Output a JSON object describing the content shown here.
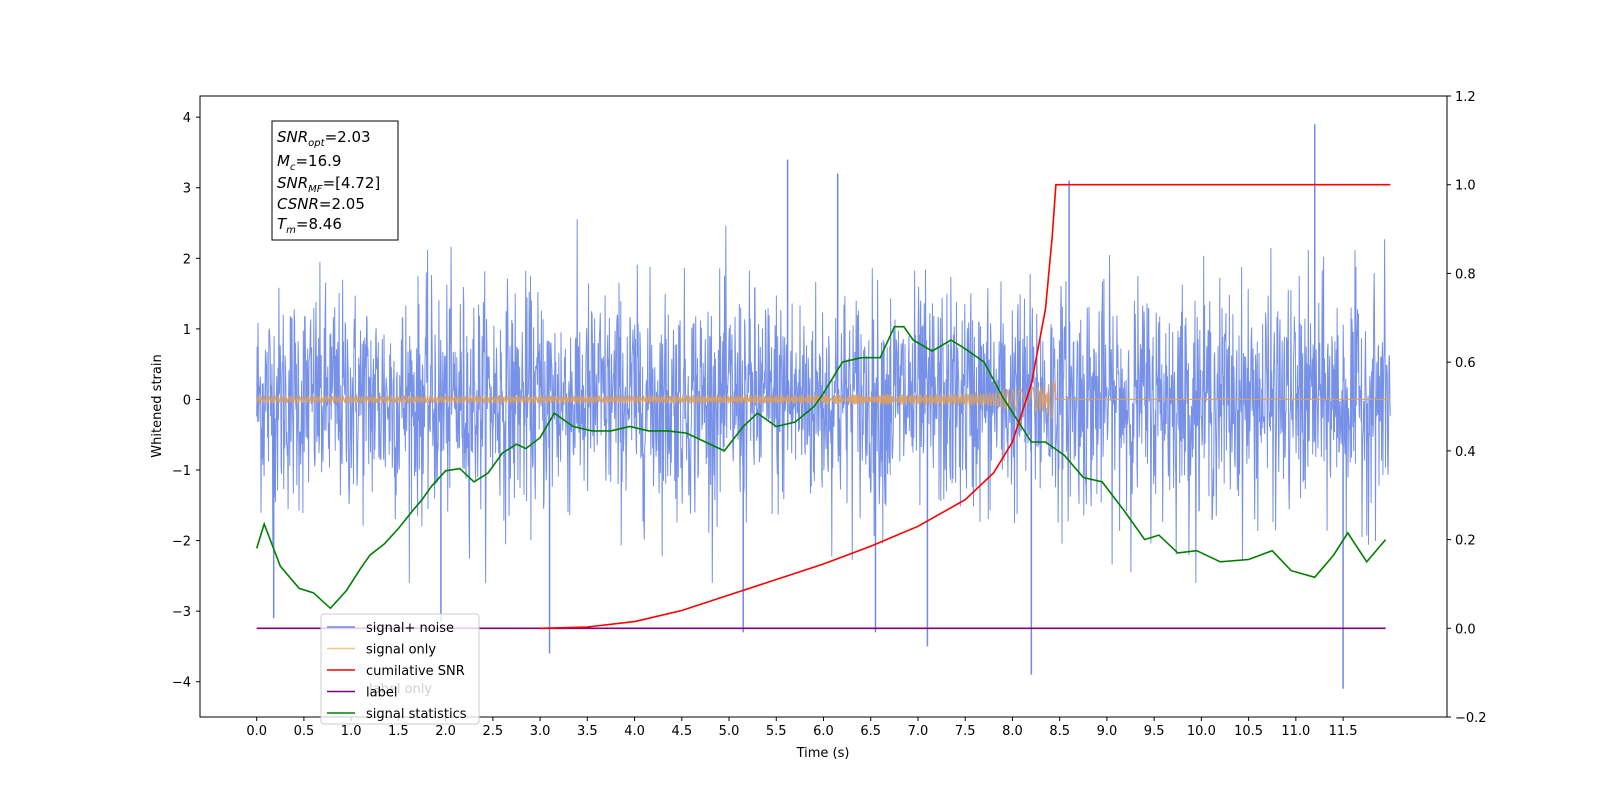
{
  "chart_data": {
    "type": "line",
    "title": "",
    "xlabel": "Time (s)",
    "ylabel": "Whitened strain",
    "y2label": "",
    "xlim": [
      -0.6,
      12.6
    ],
    "ylim": [
      -4.5,
      4.3
    ],
    "y2lim": [
      -0.2,
      1.2
    ],
    "x_ticks": [
      "0.0",
      "0.5",
      "1.0",
      "1.5",
      "2.0",
      "2.5",
      "3.0",
      "3.5",
      "4.0",
      "4.5",
      "5.0",
      "5.5",
      "6.0",
      "6.5",
      "7.0",
      "7.5",
      "8.0",
      "8.5",
      "9.0",
      "9.5",
      "10.0",
      "10.5",
      "11.0",
      "11.5"
    ],
    "y_ticks": [
      "4",
      "3",
      "2",
      "1",
      "0",
      "−1",
      "−2",
      "−3",
      "−4"
    ],
    "y2_ticks": [
      "1.2",
      "1.0",
      "0.8",
      "0.6",
      "0.4",
      "0.2",
      "0.0",
      "−0.2"
    ],
    "annotation": {
      "lines": [
        {
          "main": "SNR",
          "sub": "opt",
          "value": "=2.03"
        },
        {
          "main": "M",
          "sub": "c",
          "value": "=16.9"
        },
        {
          "main": "SNR",
          "sub": "MF",
          "value": "=[4.72]"
        },
        {
          "main": "CSNR",
          "sub": "",
          "value": "=2.05"
        },
        {
          "main": "T",
          "sub": "m",
          "value": "=8.46"
        }
      ]
    },
    "legend": {
      "placement": "lower-left",
      "entries": [
        {
          "label": "signal+ noise",
          "color": "#6f8be6"
        },
        {
          "label": "signal only",
          "color": "#f5c87a"
        },
        {
          "label": "cumilative SNR",
          "color": "#ff0000"
        },
        {
          "label": "label",
          "color": "#800080"
        },
        {
          "label": "signal statistics",
          "color": "#008000"
        }
      ],
      "ghost_text": "label only"
    },
    "series": [
      {
        "name": "signal+ noise",
        "axis": "left",
        "color": "#6f8be6",
        "x_range": [
          0.0,
          12.0
        ],
        "envelope_upper": 2.0,
        "envelope_lower": -2.0,
        "spikes": [
          {
            "x": 5.62,
            "y": 3.4
          },
          {
            "x": 11.2,
            "y": 3.9
          },
          {
            "x": 11.5,
            "y": -4.1
          },
          {
            "x": 8.2,
            "y": -3.9
          },
          {
            "x": 3.1,
            "y": -3.6
          },
          {
            "x": 7.1,
            "y": -3.5
          },
          {
            "x": 5.15,
            "y": -3.3
          },
          {
            "x": 6.55,
            "y": -3.3
          },
          {
            "x": 6.15,
            "y": 3.2
          },
          {
            "x": 8.6,
            "y": 3.1
          },
          {
            "x": 0.18,
            "y": -3.1
          },
          {
            "x": 1.95,
            "y": -3.15
          }
        ]
      },
      {
        "name": "signal only",
        "axis": "left",
        "color": "#d9a066",
        "x_range": [
          0.0,
          12.0
        ],
        "chirp_end": 8.46,
        "peak_amplitude": 0.35
      },
      {
        "name": "cumilative SNR",
        "axis": "right",
        "color": "#ff0000",
        "x": [
          3.0,
          3.5,
          4.0,
          4.5,
          5.0,
          5.5,
          6.0,
          6.5,
          7.0,
          7.5,
          7.8,
          8.0,
          8.2,
          8.35,
          8.42,
          8.46,
          12.0
        ],
        "y": [
          0.0,
          0.003,
          0.015,
          0.04,
          0.075,
          0.11,
          0.145,
          0.185,
          0.23,
          0.29,
          0.35,
          0.42,
          0.55,
          0.72,
          0.88,
          1.0,
          1.0
        ]
      },
      {
        "name": "label",
        "axis": "right",
        "color": "#800080",
        "x": [
          0.0,
          11.95
        ],
        "y": [
          0.0,
          0.0
        ]
      },
      {
        "name": "signal statistics",
        "axis": "right",
        "color": "#008000",
        "x": [
          0.0,
          0.08,
          0.25,
          0.45,
          0.6,
          0.78,
          0.95,
          1.1,
          1.2,
          1.35,
          1.5,
          1.65,
          1.75,
          1.85,
          2.0,
          2.15,
          2.3,
          2.45,
          2.6,
          2.75,
          2.85,
          3.0,
          3.15,
          3.35,
          3.55,
          3.75,
          3.95,
          4.15,
          4.35,
          4.55,
          4.75,
          4.95,
          5.15,
          5.3,
          5.5,
          5.7,
          5.9,
          6.0,
          6.2,
          6.4,
          6.6,
          6.75,
          6.85,
          6.95,
          7.15,
          7.35,
          7.5,
          7.7,
          7.9,
          8.05,
          8.2,
          8.35,
          8.55,
          8.75,
          8.95,
          9.2,
          9.4,
          9.55,
          9.75,
          9.95,
          10.2,
          10.5,
          10.75,
          10.95,
          11.2,
          11.4,
          11.55,
          11.75,
          11.95
        ],
        "y": [
          0.18,
          0.235,
          0.14,
          0.09,
          0.08,
          0.045,
          0.085,
          0.135,
          0.165,
          0.19,
          0.225,
          0.265,
          0.29,
          0.32,
          0.355,
          0.36,
          0.33,
          0.35,
          0.395,
          0.415,
          0.405,
          0.43,
          0.485,
          0.455,
          0.445,
          0.445,
          0.455,
          0.445,
          0.445,
          0.44,
          0.42,
          0.4,
          0.455,
          0.485,
          0.455,
          0.465,
          0.5,
          0.53,
          0.6,
          0.61,
          0.61,
          0.68,
          0.68,
          0.65,
          0.625,
          0.65,
          0.63,
          0.6,
          0.52,
          0.47,
          0.42,
          0.42,
          0.39,
          0.34,
          0.33,
          0.26,
          0.2,
          0.21,
          0.17,
          0.175,
          0.15,
          0.155,
          0.175,
          0.13,
          0.115,
          0.165,
          0.215,
          0.15,
          0.2
        ]
      }
    ]
  }
}
